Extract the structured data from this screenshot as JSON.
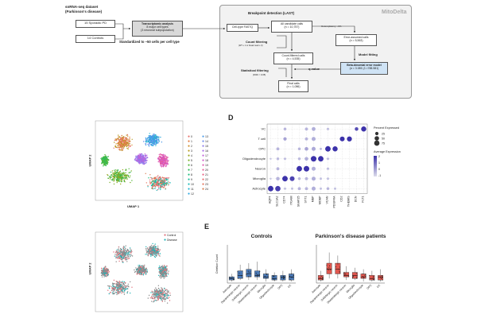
{
  "workflow": {
    "dataset_title_line1": "snRNA-seq dataset",
    "dataset_title_line2": "(Parkinson's disease)",
    "sporadic_pd": "15 Sporadic PD",
    "controls": "14 Controls",
    "transcriptomic_title": "Transcriptomic analysis",
    "transcriptomic_line2": "8 major cell types",
    "transcriptomic_line3": "(3 neuronal subpopulation)",
    "standardized": "Standardized to ~50 cells per cell type",
    "mitodelta_label": "MitoDelta",
    "breakpoint_title": "Breakpoint detection (LAST)",
    "fastq": "Cell-type FASTQ",
    "all_cells_line1": "All candidate calls",
    "all_cells_line2": "(n = 10,757)",
    "heteroplasmy": "Heteroplasmy ~1%",
    "error_assumed_line1": "Error-assumed calls",
    "error_assumed_line2": "(n = 5,563)",
    "count_filtering": "Count filtering",
    "count_filter_criteria": "(WT ≥ 1 or break read ≥ 3)",
    "count_filtered_line1": "Count-filtered calls",
    "count_filtered_line2": "(n = 4,535)",
    "model_fitting": "Model fitting",
    "beta_binomial_line1": "Beta-binomial error model",
    "beta_binomial_line2": "(α = 3.089, β =788.581)",
    "q_value": "q-value",
    "statistical_filtering": "Statistical filtering",
    "fdr": "(FDR < 0.05)",
    "final_calls_line1": "Final calls",
    "final_calls_line2": "(n = 1,086)"
  },
  "panel_labels": {
    "d": "D",
    "e": "E"
  },
  "umap": {
    "xlabel": "UMAP 1",
    "ylabel": "UMAP 2",
    "cluster_legend_col1": [
      "0",
      "1",
      "2",
      "3",
      "4",
      "5",
      "6",
      "7",
      "8",
      "9",
      "10",
      "11",
      "12"
    ],
    "cluster_legend_col2": [
      "13",
      "14",
      "15",
      "16",
      "17",
      "18",
      "19",
      "20",
      "21",
      "22",
      "23",
      "24"
    ],
    "cluster_colors": [
      "#e8716a",
      "#e07b3f",
      "#d08f2a",
      "#b79a20",
      "#9ba61f",
      "#7ab02a",
      "#52b83d",
      "#2cbb5a",
      "#1cbd7c",
      "#1bbd9c",
      "#1dbab8",
      "#22b3cf",
      "#2fa8e0",
      "#4a9ae8",
      "#6b8aec",
      "#8c7aec",
      "#a86ce6",
      "#c061da",
      "#d25ac8",
      "#df59b2",
      "#e75c9b",
      "#eb6283",
      "#ea6a6f",
      "#e4735c",
      "#d87c4c"
    ],
    "condition_legend": [
      "Control",
      "Disease"
    ],
    "condition_colors": [
      "#e0707a",
      "#20b4b7"
    ]
  },
  "chart_data": [
    {
      "type": "scatter",
      "title": "",
      "y_categories": [
        "Astrocyte",
        "Microglia",
        "Neuron",
        "Oligodendrocyte",
        "OPC",
        "T cell",
        "VC"
      ],
      "x_categories": [
        "AQP4",
        "SLC1A2",
        "CD74",
        "ITGAM",
        "SNAP25",
        "SYT1",
        "MBP",
        "MOBP",
        "VCAN",
        "PDGFRA",
        "CD2",
        "THEMIS",
        "DCN",
        "FLT1"
      ],
      "legend_size_title": "Percent Expressed",
      "legend_size_values": [
        25,
        50,
        75
      ],
      "legend_color_title": "Average Expression",
      "legend_color_ticks": [
        2,
        1,
        0,
        -1
      ],
      "grid": true,
      "points": [
        {
          "y": "Astrocyte",
          "x": "AQP4",
          "pct": 80,
          "avg": 2.2
        },
        {
          "y": "Astrocyte",
          "x": "SLC1A2",
          "pct": 75,
          "avg": 1.8
        },
        {
          "y": "Astrocyte",
          "x": "CD74",
          "pct": 10,
          "avg": -0.5
        },
        {
          "y": "Astrocyte",
          "x": "ITGAM",
          "pct": 10,
          "avg": -0.5
        },
        {
          "y": "Astrocyte",
          "x": "SNAP25",
          "pct": 20,
          "avg": -0.3
        },
        {
          "y": "Astrocyte",
          "x": "SYT1",
          "pct": 20,
          "avg": -0.3
        },
        {
          "y": "Astrocyte",
          "x": "MBP",
          "pct": 40,
          "avg": -0.2
        },
        {
          "y": "Astrocyte",
          "x": "MOBP",
          "pct": 10,
          "avg": -0.5
        },
        {
          "y": "Astrocyte",
          "x": "VCAN",
          "pct": 15,
          "avg": -0.3
        },
        {
          "y": "Astrocyte",
          "x": "PDGFRA",
          "pct": 10,
          "avg": -0.5
        },
        {
          "y": "Microglia",
          "x": "AQP4",
          "pct": 5,
          "avg": -0.5
        },
        {
          "y": "Microglia",
          "x": "SLC1A2",
          "pct": 30,
          "avg": -0.3
        },
        {
          "y": "Microglia",
          "x": "CD74",
          "pct": 80,
          "avg": 2.3
        },
        {
          "y": "Microglia",
          "x": "ITGAM",
          "pct": 60,
          "avg": 1.7
        },
        {
          "y": "Microglia",
          "x": "SNAP25",
          "pct": 15,
          "avg": -0.4
        },
        {
          "y": "Microglia",
          "x": "SYT1",
          "pct": 20,
          "avg": -0.3
        },
        {
          "y": "Microglia",
          "x": "MBP",
          "pct": 40,
          "avg": -0.2
        },
        {
          "y": "Microglia",
          "x": "MOBP",
          "pct": 10,
          "avg": -0.5
        },
        {
          "y": "Microglia",
          "x": "VCAN",
          "pct": 10,
          "avg": -0.5
        },
        {
          "y": "Neuron",
          "x": "SLC1A2",
          "pct": 20,
          "avg": -0.3
        },
        {
          "y": "Neuron",
          "x": "SNAP25",
          "pct": 80,
          "avg": 2.0
        },
        {
          "y": "Neuron",
          "x": "SYT1",
          "pct": 85,
          "avg": 2.1
        },
        {
          "y": "Neuron",
          "x": "MBP",
          "pct": 40,
          "avg": -0.2
        },
        {
          "y": "Neuron",
          "x": "VCAN",
          "pct": 10,
          "avg": -0.4
        },
        {
          "y": "Oligodendrocyte",
          "x": "AQP4",
          "pct": 5,
          "avg": -0.5
        },
        {
          "y": "Oligodendrocyte",
          "x": "SLC1A2",
          "pct": 15,
          "avg": -0.4
        },
        {
          "y": "Oligodendrocyte",
          "x": "CD74",
          "pct": 10,
          "avg": -0.4
        },
        {
          "y": "Oligodendrocyte",
          "x": "SNAP25",
          "pct": 15,
          "avg": -0.4
        },
        {
          "y": "Oligodendrocyte",
          "x": "SYT1",
          "pct": 30,
          "avg": -0.2
        },
        {
          "y": "Oligodendrocyte",
          "x": "MBP",
          "pct": 85,
          "avg": 2.0
        },
        {
          "y": "Oligodendrocyte",
          "x": "MOBP",
          "pct": 80,
          "avg": 2.0
        },
        {
          "y": "Oligodendrocyte",
          "x": "VCAN",
          "pct": 10,
          "avg": -0.4
        },
        {
          "y": "OPC",
          "x": "SLC1A2",
          "pct": 20,
          "avg": -0.3
        },
        {
          "y": "OPC",
          "x": "SNAP25",
          "pct": 15,
          "avg": -0.3
        },
        {
          "y": "OPC",
          "x": "SYT1",
          "pct": 30,
          "avg": 0.0
        },
        {
          "y": "OPC",
          "x": "MBP",
          "pct": 40,
          "avg": -0.1
        },
        {
          "y": "OPC",
          "x": "MOBP",
          "pct": 10,
          "avg": -0.4
        },
        {
          "y": "OPC",
          "x": "VCAN",
          "pct": 80,
          "avg": 2.2
        },
        {
          "y": "OPC",
          "x": "PDGFRA",
          "pct": 70,
          "avg": 2.1
        },
        {
          "y": "T cell",
          "x": "CD74",
          "pct": 25,
          "avg": 0.0
        },
        {
          "y": "T cell",
          "x": "SYT1",
          "pct": 20,
          "avg": -0.3
        },
        {
          "y": "T cell",
          "x": "MBP",
          "pct": 40,
          "avg": -0.2
        },
        {
          "y": "T cell",
          "x": "CD2",
          "pct": 60,
          "avg": 2.2
        },
        {
          "y": "T cell",
          "x": "THEMIS",
          "pct": 65,
          "avg": 2.0
        },
        {
          "y": "VC",
          "x": "CD74",
          "pct": 15,
          "avg": -0.3
        },
        {
          "y": "VC",
          "x": "SYT1",
          "pct": 20,
          "avg": -0.3
        },
        {
          "y": "VC",
          "x": "MBP",
          "pct": 35,
          "avg": -0.2
        },
        {
          "y": "VC",
          "x": "VCAN",
          "pct": 10,
          "avg": -0.4
        },
        {
          "y": "VC",
          "x": "DCN",
          "pct": 30,
          "avg": 1.5
        },
        {
          "y": "VC",
          "x": "FLT1",
          "pct": 70,
          "avg": 2.3
        }
      ]
    },
    {
      "type": "box",
      "title": "Controls",
      "ylabel": "Deletion Count",
      "categories": [
        "Astrocyte",
        "Dopaminergic neuron",
        "GABAergic neuron",
        "Glutamatergic neuron",
        "Microglia",
        "Oligodendrocyte",
        "OPC",
        "VC"
      ],
      "color": "#4a78b5",
      "boxes": [
        {
          "min": 1,
          "q1": 2,
          "median": 3,
          "q3": 4,
          "max": 6
        },
        {
          "min": 2,
          "q1": 3,
          "median": 5,
          "q3": 8,
          "max": 12
        },
        {
          "min": 2,
          "q1": 4,
          "median": 6,
          "q3": 9,
          "max": 13
        },
        {
          "min": 2,
          "q1": 4,
          "median": 5,
          "q3": 8,
          "max": 14
        },
        {
          "min": 1,
          "q1": 3,
          "median": 4,
          "q3": 6,
          "max": 9
        },
        {
          "min": 1,
          "q1": 2,
          "median": 3,
          "q3": 5,
          "max": 7
        },
        {
          "min": 1,
          "q1": 2,
          "median": 4,
          "q3": 5,
          "max": 8
        },
        {
          "min": 1,
          "q1": 2,
          "median": 4,
          "q3": 6,
          "max": 9
        }
      ],
      "ylim": [
        0,
        25
      ]
    },
    {
      "type": "box",
      "title": "Parkinson's disease patients",
      "ylabel": "",
      "categories": [
        "Astrocyte",
        "Dopaminergic neuron",
        "GABAergic neuron",
        "Glutamatergic neuron",
        "Microglia",
        "Oligodendrocyte",
        "OPC",
        "VC"
      ],
      "color": "#e0574f",
      "boxes": [
        {
          "min": 1,
          "q1": 2,
          "median": 3,
          "q3": 5,
          "max": 8
        },
        {
          "min": 3,
          "q1": 6,
          "median": 9,
          "q3": 13,
          "max": 20
        },
        {
          "min": 3,
          "q1": 6,
          "median": 9,
          "q3": 13,
          "max": 18
        },
        {
          "min": 2,
          "q1": 4,
          "median": 5,
          "q3": 7,
          "max": 11
        },
        {
          "min": 2,
          "q1": 3,
          "median": 5,
          "q3": 7,
          "max": 10
        },
        {
          "min": 1,
          "q1": 3,
          "median": 4,
          "q3": 6,
          "max": 9
        },
        {
          "min": 1,
          "q1": 2,
          "median": 3,
          "q3": 5,
          "max": 8
        },
        {
          "min": 1,
          "q1": 2,
          "median": 4,
          "q3": 5,
          "max": 9
        }
      ],
      "ylim": [
        0,
        25
      ]
    }
  ]
}
